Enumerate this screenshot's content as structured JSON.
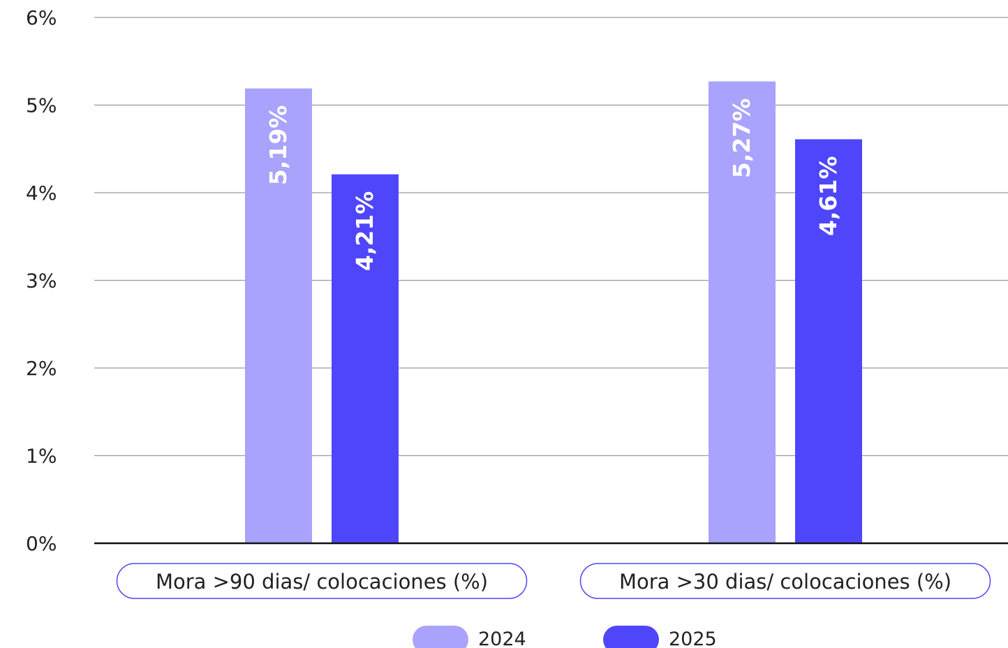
{
  "chart_data": {
    "type": "bar",
    "categories": [
      "Mora >90 dias/ colocaciones (%)",
      "Mora >30 dias/ colocaciones (%)"
    ],
    "series": [
      {
        "name": "2024",
        "values": [
          5.19,
          5.27
        ],
        "labels": [
          "5,19%",
          "5,27%"
        ],
        "color": "#a9a3fd"
      },
      {
        "name": "2025",
        "values": [
          4.21,
          4.61
        ],
        "labels": [
          "4,21%",
          "4,61%"
        ],
        "color": "#4f46fb"
      }
    ],
    "yticks": [
      0,
      1,
      2,
      3,
      4,
      5,
      6
    ],
    "ytick_labels": [
      "0%",
      "1%",
      "2%",
      "3%",
      "4%",
      "5%",
      "6%"
    ],
    "ylim": [
      0,
      6
    ],
    "title": "",
    "xlabel": "",
    "ylabel": "",
    "grid": true,
    "legend_position": "bottom-center",
    "category_label_style": "rounded-outline",
    "accent_color": "#4f46fb"
  }
}
